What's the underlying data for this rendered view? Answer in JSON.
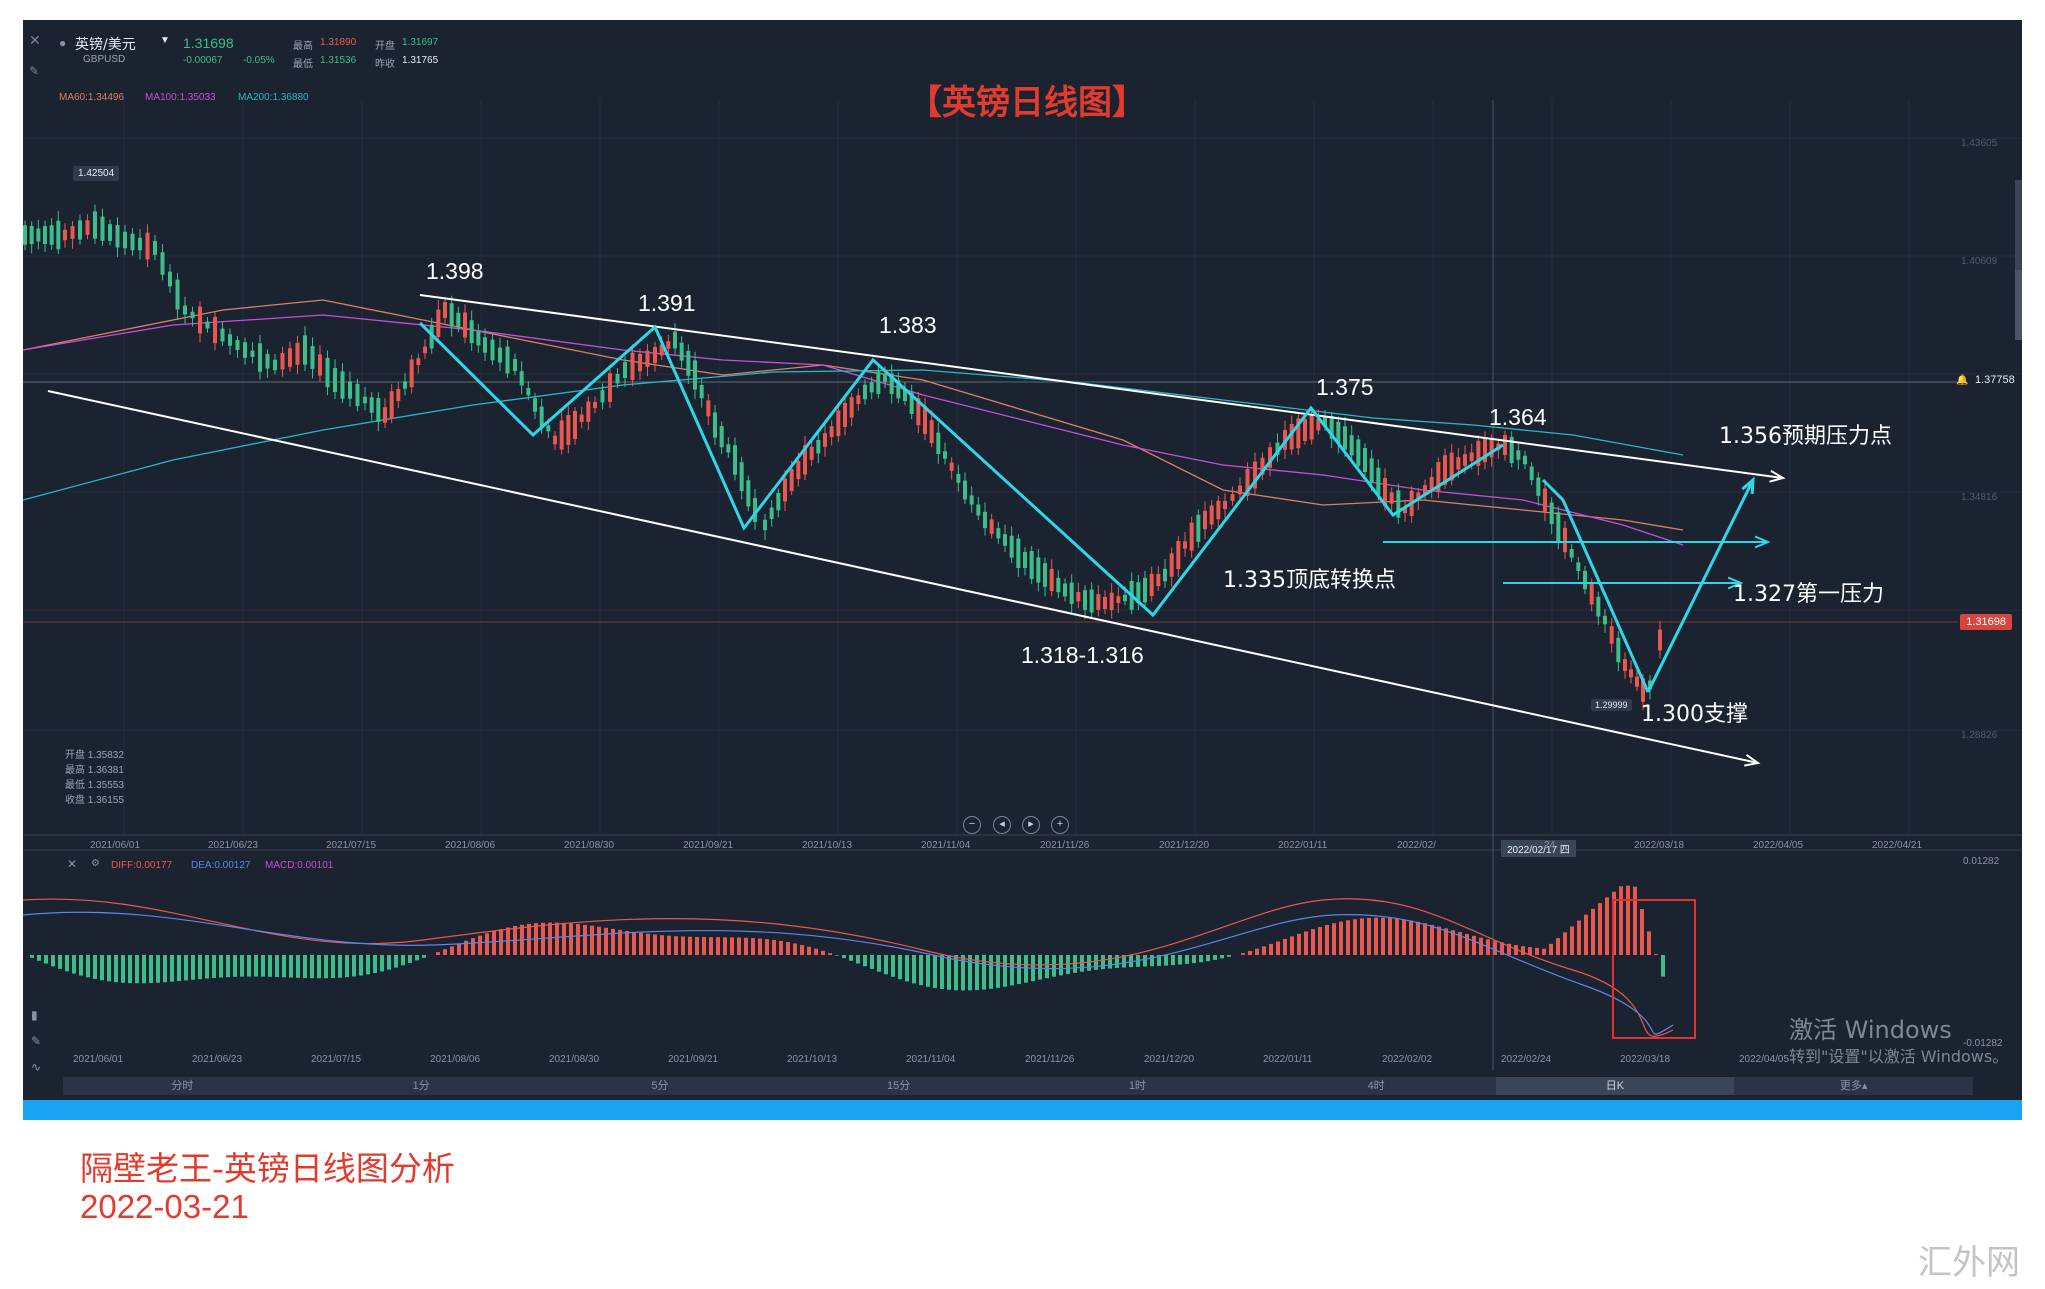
{
  "header": {
    "symbol_name": "英镑/美元",
    "symbol_code": "GBPUSD",
    "last_price": "1.31698",
    "change": "-0.00067",
    "change_pct": "-0.05%",
    "high_label": "最高",
    "high": "1.31890",
    "open_label": "开盘",
    "open": "1.31697",
    "low_label": "最低",
    "low": "1.31536",
    "prev_close_label": "昨收",
    "prev_close": "1.31765",
    "ma60": "MA60:1.34496",
    "ma100": "MA100:1.35033",
    "ma200": "MA200:1.36880"
  },
  "chart_title": "【英镑日线图】",
  "annotations": {
    "a1398": "1.398",
    "a1391": "1.391",
    "a1383": "1.383",
    "a1375": "1.375",
    "a1364": "1.364",
    "a1356": "1.356预期压力点",
    "a1335": "1.335顶底转换点",
    "a1327": "1.327第一压力",
    "a1318": "1.318-1.316",
    "a1300": "1.300支撑"
  },
  "price_labels": {
    "top_marker": "1.42504",
    "low_marker": "1.29999",
    "line_marker": "1.37758",
    "current": "1.31698",
    "axis": [
      "1.43605",
      "1.40609",
      "1.34816",
      "1.28826"
    ]
  },
  "ohlc_box": {
    "open": "开盘 1.35832",
    "high": "最高 1.36381",
    "low": "最低 1.35553",
    "close": "收盘 1.36155"
  },
  "date_axis": [
    "2021/06/01",
    "2021/06/23",
    "2021/07/15",
    "2021/08/06",
    "2021/08/30",
    "2021/09/21",
    "2021/10/13",
    "2021/11/04",
    "2021/11/26",
    "2021/12/20",
    "2022/01/11",
    "2022/02/",
    "2022/02/17 四",
    "24",
    "2022/03/18",
    "2022/04/05",
    "2022/04/21"
  ],
  "macd": {
    "diff": "DIFF:0.00177",
    "dea": "DEA:0.00127",
    "macd": "MACD:0.00101",
    "top_value": "0.01282",
    "bottom_value": "-0.01282",
    "dates": [
      "2021/06/01",
      "2021/06/23",
      "2021/07/15",
      "2021/08/06",
      "2021/08/30",
      "2021/09/21",
      "2021/10/13",
      "2021/11/04",
      "2021/11/26",
      "2021/12/20",
      "2022/01/11",
      "2022/02/02",
      "2022/02/24",
      "2022/03/18",
      "2022/04/05"
    ]
  },
  "timeframes": [
    "分时",
    "1分",
    "5分",
    "15分",
    "1时",
    "4时",
    "日K",
    "更多▴"
  ],
  "windows_watermark": {
    "line1": "激活 Windows",
    "line2": "转到\"设置\"以激活 Windows。"
  },
  "footer": {
    "line1": "隔壁老王-英镑日线图分析",
    "line2": "2022-03-21"
  },
  "site_watermark": "汇外网",
  "colors": {
    "bg": "#1b2331",
    "up": "#e8584f",
    "down": "#3dbd8a",
    "trend_white": "#ffffff",
    "zigzag": "#2fd6e8",
    "ma60": "#d9806a",
    "ma100": "#c64fd8",
    "ma200": "#2bb6c7",
    "red_text": "#e23b2e"
  }
}
